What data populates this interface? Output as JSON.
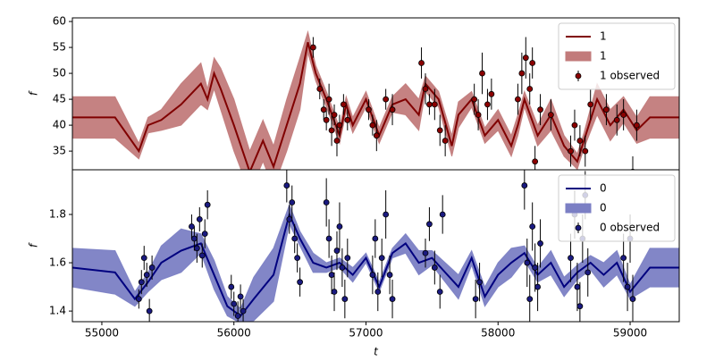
{
  "chart_data": [
    {
      "type": "line",
      "ylabel": "f",
      "xlim": [
        54777,
        59372
      ],
      "ylim": [
        31.4,
        60.7
      ],
      "yticks": [
        35,
        40,
        45,
        50,
        55,
        60
      ],
      "legend": "upper right",
      "x": [
        54777,
        55100,
        55280,
        55350,
        55450,
        55600,
        55750,
        55800,
        55850,
        55900,
        56000,
        56120,
        56220,
        56300,
        56400,
        56500,
        56560,
        56620,
        56700,
        56800,
        56850,
        56900,
        57000,
        57100,
        57200,
        57300,
        57400,
        57450,
        57550,
        57650,
        57700,
        57800,
        57900,
        58000,
        58100,
        58150,
        58200,
        58300,
        58400,
        58500,
        58600,
        58650,
        58750,
        58850,
        58950,
        59050,
        59150,
        59372
      ],
      "series": [
        {
          "name": "1",
          "style": "line",
          "color": "#800000",
          "values": [
            41.5,
            41.5,
            35,
            40,
            41,
            44,
            48,
            45,
            50,
            47,
            40,
            31,
            37,
            32,
            40,
            48,
            56,
            50,
            45,
            38,
            44,
            40,
            45,
            38,
            44,
            45,
            42,
            48,
            45,
            36,
            42,
            45,
            38,
            41,
            36,
            40,
            45,
            38,
            42,
            36,
            33,
            37,
            45,
            40,
            43,
            39,
            41.5,
            41.5
          ]
        },
        {
          "name": "1",
          "style": "band",
          "color": "#c27b7b",
          "lower": [
            37.5,
            37.5,
            33.5,
            38.5,
            39,
            40,
            44,
            43,
            47,
            43,
            35,
            27,
            33,
            28,
            35,
            43,
            54,
            48.5,
            43.5,
            36.5,
            42.5,
            38.5,
            43.5,
            36.5,
            42.5,
            42,
            39,
            46.5,
            43.5,
            34,
            39.5,
            43.5,
            36.5,
            39,
            34,
            38,
            43.5,
            36,
            39,
            34,
            31.5,
            35.5,
            42,
            37,
            40.5,
            36.5,
            37.5,
            37.5
          ],
          "upper": [
            45.5,
            45.5,
            36.5,
            41.5,
            43,
            48,
            52,
            47,
            53,
            51,
            45,
            35,
            41,
            36,
            45,
            53,
            58,
            51.5,
            46.5,
            39.5,
            45.5,
            41.5,
            46.5,
            39.5,
            45.5,
            48,
            45,
            49.5,
            46.5,
            38,
            44.5,
            46.5,
            39.5,
            43,
            38,
            42,
            46.5,
            40,
            45,
            38,
            34.5,
            38.5,
            48,
            43,
            45.5,
            41.5,
            45.5,
            45.5
          ]
        },
        {
          "name": "1 observed",
          "style": "errorbar",
          "color": "#8b0000",
          "x": [
            56600,
            56650,
            56680,
            56700,
            56720,
            56740,
            56760,
            56780,
            56800,
            56830,
            56860,
            57020,
            57050,
            57080,
            57150,
            57200,
            57420,
            57450,
            57480,
            57520,
            57560,
            57600,
            57820,
            57850,
            57880,
            57920,
            57950,
            58150,
            58180,
            58210,
            58240,
            58260,
            58280,
            58320,
            58400,
            58550,
            58580,
            58620,
            58660,
            58700,
            58820,
            58900,
            58950,
            59020,
            59050
          ],
          "values": [
            55,
            47,
            43,
            41,
            45,
            39,
            42,
            37,
            40,
            44,
            41,
            43,
            40,
            38,
            45,
            43,
            52,
            47,
            44,
            44,
            39,
            37,
            45,
            42,
            50,
            44,
            46,
            45,
            50,
            53,
            47,
            52,
            33,
            43,
            42,
            35,
            40,
            37,
            35,
            44,
            43,
            41,
            42,
            31,
            40
          ],
          "errors": [
            2,
            2,
            2,
            2,
            3,
            3,
            2,
            3,
            2,
            2,
            2,
            2,
            2,
            3,
            2,
            3,
            3,
            3,
            2,
            3,
            3,
            3,
            3,
            3,
            4,
            3,
            3,
            3,
            4,
            4,
            3,
            3,
            3,
            3,
            3,
            3,
            3,
            3,
            3,
            3,
            3,
            3,
            3,
            3,
            3
          ]
        }
      ]
    },
    {
      "type": "line",
      "ylabel": "f",
      "xlabel": "t",
      "xlim": [
        54777,
        59372
      ],
      "xticks": [
        55000,
        56000,
        57000,
        58000,
        59000
      ],
      "ylim": [
        1.356,
        1.985
      ],
      "yticks": [
        1.4,
        1.6,
        1.8
      ],
      "legend": "upper right",
      "x": [
        54777,
        55100,
        55250,
        55350,
        55450,
        55600,
        55750,
        55850,
        55950,
        56050,
        56150,
        56300,
        56420,
        56500,
        56600,
        56700,
        56800,
        56900,
        57000,
        57100,
        57200,
        57300,
        57400,
        57500,
        57600,
        57700,
        57800,
        57900,
        58000,
        58100,
        58200,
        58300,
        58400,
        58500,
        58600,
        58700,
        58800,
        58900,
        59000,
        59150,
        59372
      ],
      "series": [
        {
          "name": "0",
          "style": "line",
          "color": "#00007f",
          "values": [
            1.58,
            1.56,
            1.45,
            1.52,
            1.6,
            1.65,
            1.68,
            1.55,
            1.42,
            1.38,
            1.45,
            1.55,
            1.8,
            1.7,
            1.6,
            1.58,
            1.6,
            1.55,
            1.62,
            1.5,
            1.64,
            1.68,
            1.6,
            1.62,
            1.56,
            1.5,
            1.62,
            1.46,
            1.55,
            1.6,
            1.64,
            1.55,
            1.6,
            1.5,
            1.56,
            1.6,
            1.55,
            1.6,
            1.48,
            1.58,
            1.58
          ]
        },
        {
          "name": "0",
          "style": "band",
          "color": "#7b7fc4",
          "lower": [
            1.5,
            1.47,
            1.42,
            1.48,
            1.53,
            1.56,
            1.64,
            1.49,
            1.38,
            1.35,
            1.36,
            1.44,
            1.76,
            1.67,
            1.56,
            1.56,
            1.58,
            1.52,
            1.6,
            1.48,
            1.62,
            1.64,
            1.55,
            1.59,
            1.52,
            1.45,
            1.59,
            1.42,
            1.5,
            1.54,
            1.61,
            1.52,
            1.55,
            1.46,
            1.53,
            1.57,
            1.5,
            1.55,
            1.45,
            1.5,
            1.5
          ],
          "upper": [
            1.66,
            1.65,
            1.48,
            1.56,
            1.67,
            1.74,
            1.72,
            1.61,
            1.46,
            1.41,
            1.54,
            1.66,
            1.84,
            1.73,
            1.64,
            1.6,
            1.62,
            1.58,
            1.64,
            1.52,
            1.66,
            1.72,
            1.65,
            1.65,
            1.6,
            1.55,
            1.65,
            1.5,
            1.6,
            1.66,
            1.67,
            1.58,
            1.65,
            1.54,
            1.59,
            1.63,
            1.6,
            1.65,
            1.51,
            1.66,
            1.66
          ]
        },
        {
          "name": "0 observed",
          "style": "errorbar",
          "color": "#1a1a80",
          "x": [
            55280,
            55300,
            55320,
            55340,
            55360,
            55380,
            55680,
            55700,
            55720,
            55740,
            55760,
            55780,
            55800,
            55980,
            56000,
            56030,
            56050,
            56070,
            56400,
            56420,
            56440,
            56460,
            56480,
            56500,
            56700,
            56720,
            56740,
            56760,
            56780,
            56800,
            56820,
            56840,
            56860,
            57050,
            57070,
            57090,
            57120,
            57150,
            57180,
            57200,
            57450,
            57480,
            57520,
            57560,
            57580,
            57830,
            57860,
            58200,
            58220,
            58240,
            58260,
            58280,
            58300,
            58320,
            58550,
            58580,
            58600,
            58620,
            58640,
            58660,
            58680,
            58950,
            58980,
            59000,
            59020
          ],
          "values": [
            1.45,
            1.52,
            1.62,
            1.55,
            1.4,
            1.58,
            1.75,
            1.7,
            1.66,
            1.78,
            1.63,
            1.72,
            1.84,
            1.5,
            1.43,
            1.38,
            1.46,
            1.4,
            1.92,
            1.78,
            1.85,
            1.7,
            1.62,
            1.52,
            1.85,
            1.7,
            1.55,
            1.48,
            1.65,
            1.75,
            1.58,
            1.45,
            1.62,
            1.55,
            1.7,
            1.48,
            1.62,
            1.8,
            1.55,
            1.45,
            1.64,
            1.76,
            1.58,
            1.48,
            1.8,
            1.45,
            1.52,
            1.92,
            1.6,
            1.45,
            1.75,
            1.58,
            1.5,
            1.68,
            1.62,
            1.8,
            1.5,
            1.42,
            1.7,
            1.88,
            1.56,
            1.62,
            1.5,
            1.7,
            1.45
          ],
          "errors": [
            0.04,
            0.05,
            0.05,
            0.05,
            0.05,
            0.05,
            0.05,
            0.05,
            0.06,
            0.05,
            0.05,
            0.06,
            0.06,
            0.05,
            0.05,
            0.06,
            0.05,
            0.05,
            0.07,
            0.06,
            0.07,
            0.06,
            0.06,
            0.06,
            0.1,
            0.08,
            0.08,
            0.08,
            0.08,
            0.1,
            0.08,
            0.08,
            0.08,
            0.08,
            0.08,
            0.08,
            0.08,
            0.1,
            0.08,
            0.08,
            0.06,
            0.07,
            0.07,
            0.07,
            0.08,
            0.08,
            0.08,
            0.1,
            0.1,
            0.1,
            0.1,
            0.1,
            0.1,
            0.1,
            0.1,
            0.1,
            0.1,
            0.1,
            0.1,
            0.1,
            0.1,
            0.1,
            0.1,
            0.1,
            0.1
          ]
        }
      ]
    }
  ]
}
